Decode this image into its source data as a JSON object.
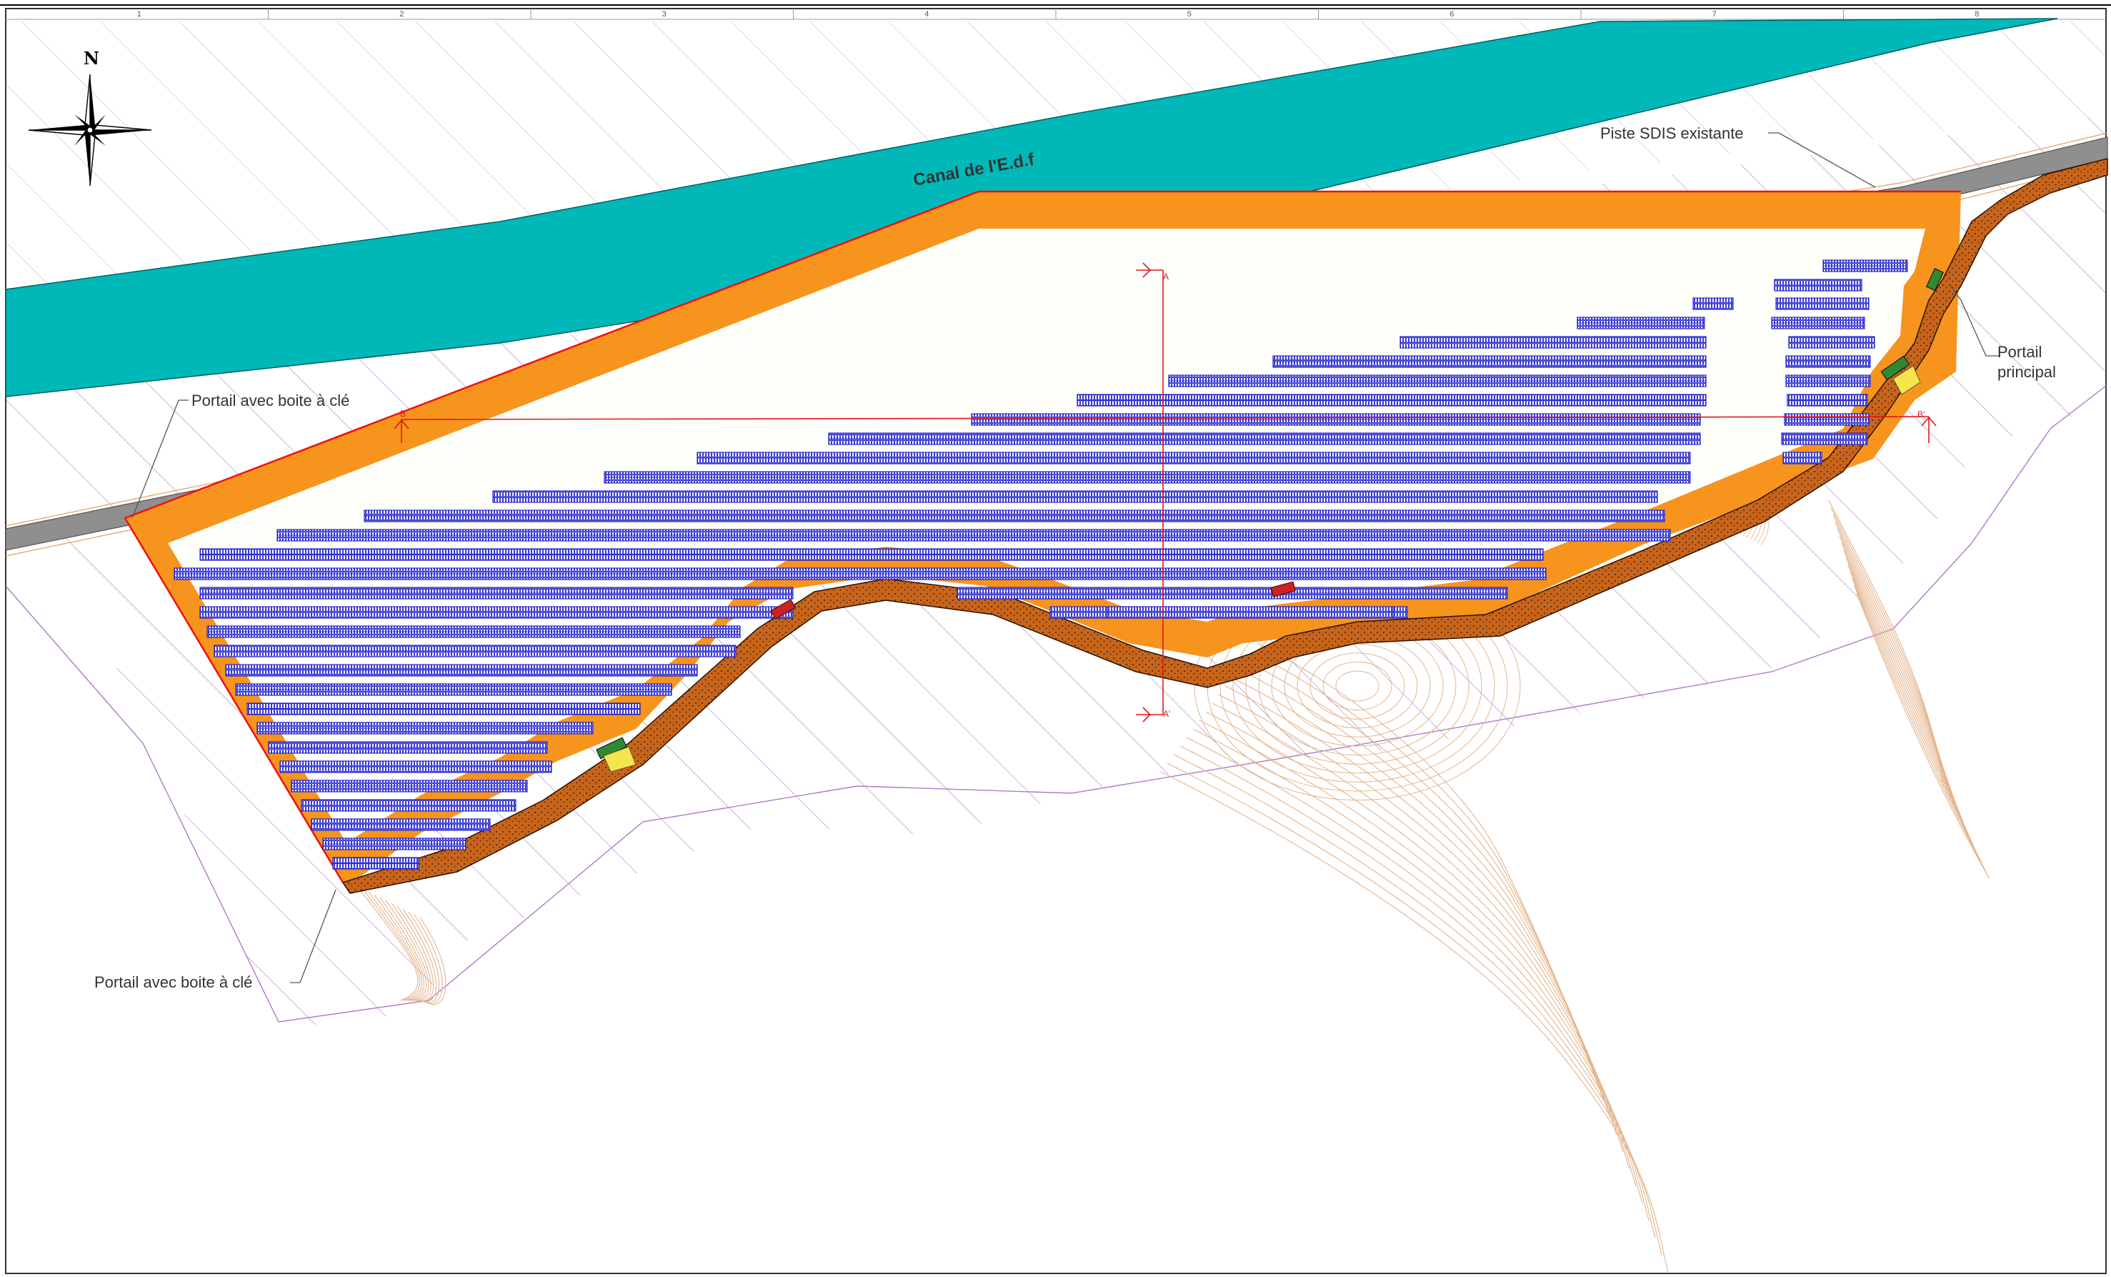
{
  "map": {
    "north_label": "N",
    "grid_numbers": [
      "1",
      "2",
      "3",
      "4",
      "5",
      "6",
      "7",
      "8"
    ],
    "canal_label": "Canal de l'E.d.f",
    "piste_label": "Piste SDIS existante",
    "portail_nw_label": "Portail avec boite à clé",
    "portail_sw_label": "Portail avec boite à clé",
    "portail_principal_line1": "Portail",
    "portail_principal_line2": "principal",
    "section_a": "A",
    "section_a_prime": "A'",
    "section_b": "B",
    "section_b_prime": "B'"
  },
  "colors": {
    "canal": "#00b8b8",
    "track": "#8f8f8f",
    "perimeter": "#f7941d",
    "road": "#c8651b",
    "panels": "#1a1acc",
    "fence": "#ee1111",
    "contours": "#e3b48c",
    "hatch": "#8e6bb8",
    "section": "#e01818"
  }
}
